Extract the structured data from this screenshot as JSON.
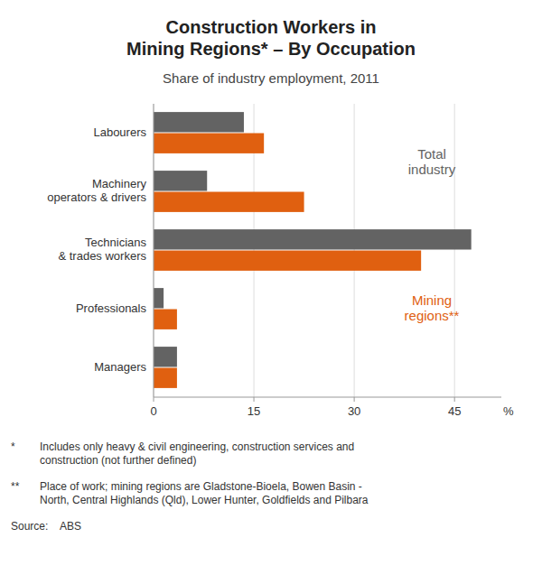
{
  "chart_data": {
    "type": "bar",
    "orientation": "horizontal",
    "title": "Construction Workers in\nMining Regions* – By Occupation",
    "subtitle": "Share of industry employment, 2011",
    "categories": [
      "Managers",
      "Professionals",
      "Technicians\n& trades workers",
      "Machinery\noperators & drivers",
      "Labourers"
    ],
    "series": [
      {
        "name": "Total\nindustry",
        "color": "#636363",
        "values": [
          3.5,
          1.5,
          47.5,
          8.0,
          13.5
        ]
      },
      {
        "name": "Mining\nregions**",
        "color": "#e06010",
        "values": [
          3.5,
          3.5,
          40.0,
          22.5,
          16.5
        ]
      }
    ],
    "xlabel": "%",
    "xlim": [
      0,
      52
    ],
    "xticks": [
      0,
      15,
      30,
      45
    ],
    "grid": true,
    "footnotes": [
      {
        "marker": "*",
        "text": "Includes only heavy & civil engineering, construction services and\nconstruction (not further defined)"
      },
      {
        "marker": "**",
        "text": "Place of work; mining regions are Gladstone-Bioela, Bowen Basin -\nNorth, Central Highlands (Qld), Lower Hunter, Goldfields and Pilbara"
      }
    ],
    "source": "Source:    ABS"
  }
}
